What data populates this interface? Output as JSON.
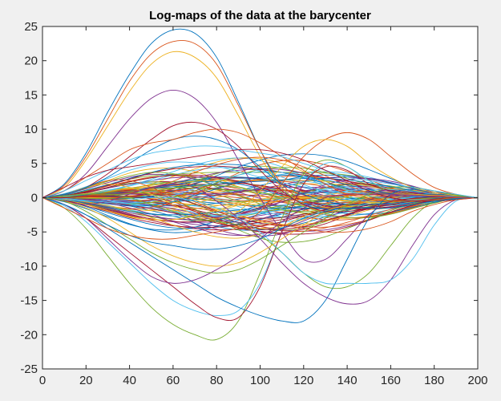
{
  "chart_data": {
    "type": "line",
    "title": "Log-maps of the data at the barycenter",
    "xlabel": "",
    "ylabel": "",
    "xlim": [
      0,
      200
    ],
    "ylim": [
      -25,
      25
    ],
    "x_ticks": [
      0,
      20,
      40,
      60,
      80,
      100,
      120,
      140,
      160,
      180,
      200
    ],
    "y_ticks": [
      -25,
      -20,
      -15,
      -10,
      -5,
      0,
      5,
      10,
      15,
      20,
      25
    ],
    "grid": false,
    "legend": "none",
    "colors": [
      "#0072BD",
      "#D95319",
      "#EDB120",
      "#7E2F8E",
      "#77AC30",
      "#4DBEEE",
      "#A2142F"
    ],
    "series_count": 120,
    "sample_x": [
      0,
      10,
      20,
      30,
      40,
      50,
      60,
      70,
      80,
      90,
      100,
      110,
      120,
      130,
      140,
      150,
      160,
      170,
      180,
      190,
      200
    ],
    "series": [
      {
        "values": [
          0,
          2,
          6.5,
          12.5,
          18,
          22.5,
          24.5,
          24,
          20.5,
          14,
          7,
          1.5,
          -1,
          -1.5,
          -1,
          0,
          0.5,
          0.5,
          0.5,
          0.3,
          0
        ]
      },
      {
        "values": [
          0,
          1.8,
          6,
          11.5,
          17,
          21,
          22.8,
          22.5,
          19.5,
          13.5,
          7,
          2,
          -0.5,
          -1.5,
          -1.2,
          -0.5,
          0,
          0.3,
          0.4,
          0.2,
          0
        ]
      },
      {
        "values": [
          0,
          1.5,
          5.5,
          10.5,
          15.5,
          19.5,
          21.3,
          20.5,
          17.5,
          12,
          6,
          1.5,
          -1,
          -2,
          -1.5,
          -0.5,
          0,
          0.3,
          0.3,
          0.2,
          0
        ]
      },
      {
        "values": [
          0,
          1,
          3.5,
          7.5,
          11.5,
          14.5,
          15.7,
          14.5,
          11,
          5.5,
          0,
          -5,
          -9,
          -9,
          -6,
          -2.5,
          -0.5,
          0.5,
          0.8,
          0.4,
          0
        ]
      },
      {
        "values": [
          0,
          -1.5,
          -4.5,
          -8.5,
          -12.5,
          -16,
          -18.5,
          -20,
          -20.7,
          -18,
          -11,
          -3,
          3.5,
          5.5,
          4.5,
          2.5,
          1,
          0.5,
          0.3,
          0.2,
          0
        ]
      },
      {
        "values": [
          0,
          -1.2,
          -3.5,
          -6.5,
          -9.5,
          -12.5,
          -15,
          -16.5,
          -17.2,
          -16.5,
          -12.5,
          -5,
          2,
          5,
          4.5,
          2.5,
          1,
          0.5,
          0.3,
          0.2,
          0
        ]
      },
      {
        "values": [
          0,
          -1,
          -3,
          -5.5,
          -8,
          -10.5,
          -13,
          -15.5,
          -17.5,
          -17.5,
          -13,
          -5,
          2,
          4.5,
          4,
          2,
          1,
          0.5,
          0.3,
          0.1,
          0
        ]
      },
      {
        "values": [
          0,
          -1,
          -2.5,
          -4.5,
          -6.5,
          -8.5,
          -10.5,
          -12.5,
          -14.5,
          -16,
          -17.2,
          -18,
          -18,
          -15,
          -9,
          -3,
          0.5,
          1.2,
          0.8,
          0.4,
          0
        ]
      },
      {
        "values": [
          0,
          0.5,
          1.5,
          2.5,
          2.5,
          1.5,
          0,
          -2,
          -3.5,
          -4,
          -2,
          2,
          6,
          8.5,
          9.5,
          8.5,
          6,
          3.5,
          1.5,
          0.5,
          0
        ]
      },
      {
        "values": [
          0,
          0.5,
          1.5,
          2,
          1.5,
          0.5,
          -1,
          -2.5,
          -3,
          -2,
          1,
          4.5,
          7.5,
          8.5,
          7.5,
          5,
          3,
          1.5,
          0.8,
          0.3,
          0
        ]
      },
      {
        "values": [
          0,
          -0.5,
          -1,
          -0.5,
          0.5,
          1.5,
          2,
          1.5,
          -0.5,
          -3,
          -6,
          -9.5,
          -12.5,
          -14.5,
          -15.5,
          -15,
          -12,
          -7,
          -2.5,
          -0.3,
          0
        ]
      },
      {
        "values": [
          0,
          0.3,
          0.5,
          0.5,
          0,
          -1,
          -2,
          -3,
          -3.5,
          -4,
          -5.5,
          -8,
          -11,
          -13,
          -13,
          -11,
          -7,
          -3,
          -0.5,
          0.2,
          0
        ]
      },
      {
        "values": [
          0,
          -0.3,
          -0.5,
          -0.5,
          -0.3,
          0,
          0,
          -0.5,
          -1.5,
          -3,
          -5,
          -8,
          -11,
          -12.5,
          -12.5,
          -12.5,
          -12,
          -9,
          -4,
          -0.5,
          0
        ]
      },
      {
        "values": [
          0,
          0.5,
          1.5,
          3.5,
          6,
          8.5,
          10.5,
          11,
          10,
          7.5,
          4,
          1,
          -1,
          -2,
          -2,
          -1.5,
          -1,
          -0.5,
          -0.2,
          0,
          0
        ]
      },
      {
        "values": [
          0,
          0.5,
          1.5,
          3,
          5,
          7,
          8.5,
          9,
          8.5,
          7,
          4.5,
          2,
          0.5,
          -0.5,
          -1,
          -1,
          -0.8,
          -0.5,
          -0.3,
          -0.1,
          0
        ]
      },
      {
        "values": [
          0,
          1,
          3,
          5,
          7,
          8,
          8.5,
          9.5,
          10,
          9.5,
          8,
          6,
          4,
          2,
          0.5,
          0,
          -0.5,
          -0.5,
          -0.3,
          0,
          0
        ]
      },
      {
        "values": [
          0,
          -0.5,
          -1.5,
          -3,
          -5,
          -7,
          -8.5,
          -9.5,
          -10,
          -9.5,
          -8,
          -6,
          -4,
          -2,
          -1,
          0,
          0.5,
          0.5,
          0.3,
          0.1,
          0
        ]
      },
      {
        "values": [
          0,
          -1,
          -3,
          -6,
          -9,
          -11.5,
          -12.5,
          -12,
          -10.5,
          -8.5,
          -6,
          -3.5,
          -1.5,
          0,
          0.5,
          0.5,
          0.5,
          0.3,
          0.2,
          0.1,
          0
        ]
      },
      {
        "values": [
          0,
          -0.5,
          -2,
          -4,
          -6,
          -8,
          -9.5,
          -10.5,
          -11,
          -10.5,
          -9,
          -7,
          -5,
          -3,
          -1,
          0.5,
          1.5,
          1.5,
          1,
          0.4,
          0
        ]
      },
      {
        "values": [
          0,
          1,
          2.5,
          4,
          5.5,
          6.5,
          7,
          7.5,
          7.5,
          7,
          6.5,
          6,
          5,
          4,
          3,
          2.5,
          2,
          1.5,
          1,
          0.5,
          0
        ]
      },
      {
        "values": [
          0,
          1.5,
          3,
          4,
          4.5,
          5,
          5.5,
          6,
          6.5,
          7,
          7,
          6.5,
          5.5,
          4,
          2.5,
          1,
          0,
          -0.5,
          -0.5,
          -0.3,
          0
        ]
      },
      {
        "values": [
          0,
          -1,
          -2.5,
          -4,
          -5.5,
          -6.5,
          -7,
          -7.5,
          -7.5,
          -7,
          -6,
          -4.5,
          -3,
          -2,
          -1.5,
          -1.5,
          -1.5,
          -1,
          -0.5,
          -0.2,
          0
        ]
      },
      {
        "values": [
          0,
          -1.5,
          -3,
          -4.5,
          -5.5,
          -6,
          -6,
          -5.5,
          -5,
          -4.5,
          -4,
          -4,
          -4.5,
          -5,
          -5,
          -4.5,
          -3.5,
          -2,
          -1,
          -0.3,
          0
        ]
      }
    ]
  }
}
